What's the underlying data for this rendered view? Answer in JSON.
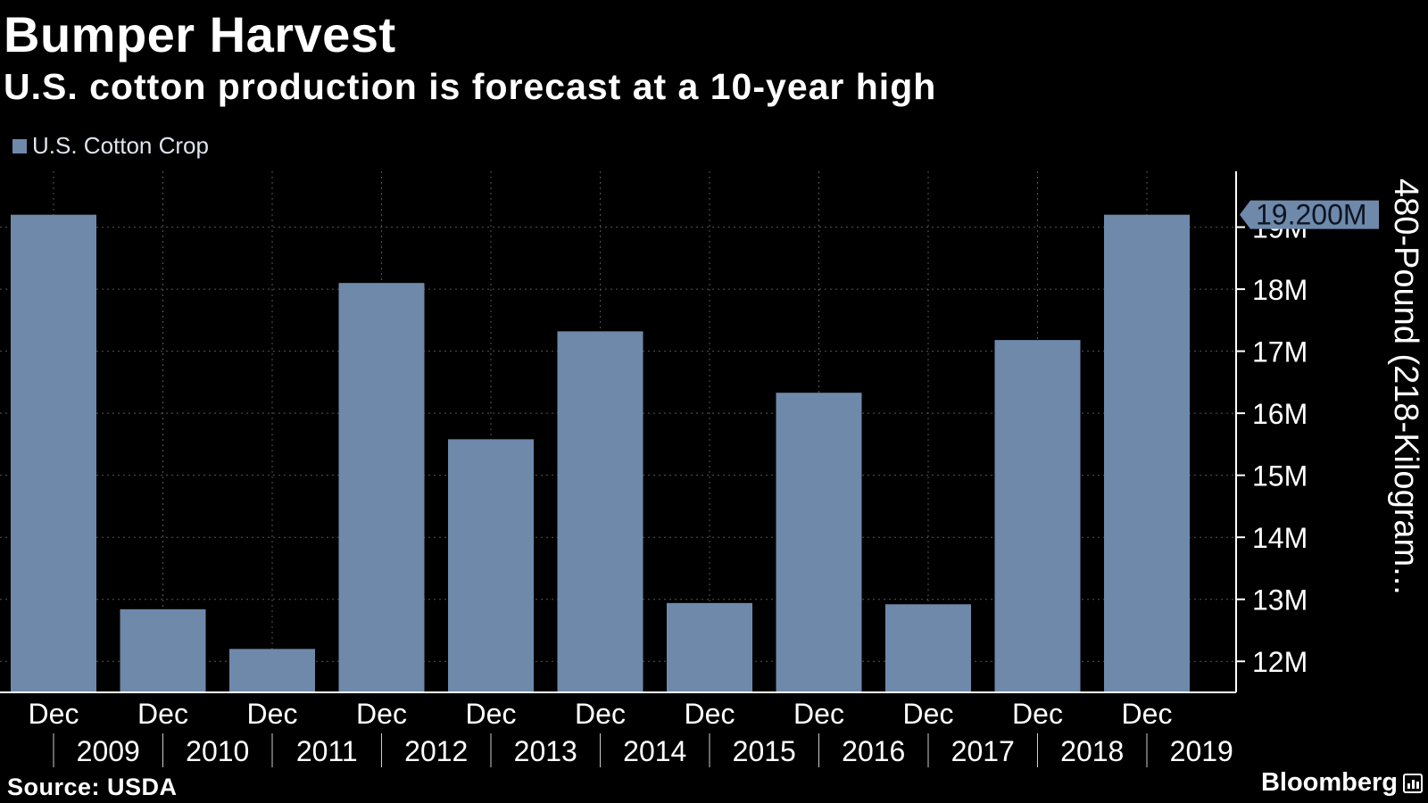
{
  "header": {
    "title": "Bumper Harvest",
    "subtitle": "U.S. cotton production is forecast at a 10-year high"
  },
  "footer": {
    "source": "Source: USDA",
    "brand": "Bloomberg"
  },
  "chart_data": {
    "type": "bar",
    "series": [
      {
        "name": "U.S. Cotton Crop",
        "color": "#6f89ab",
        "values": [
          19.2,
          12.84,
          12.2,
          18.1,
          15.58,
          17.32,
          12.94,
          16.33,
          12.92,
          17.18,
          19.2
        ]
      }
    ],
    "categories": [
      "Dec 2009",
      "Dec 2010",
      "Dec 2011",
      "Dec 2012",
      "Dec 2013",
      "Dec 2014",
      "Dec 2015",
      "Dec 2016",
      "Dec 2017",
      "Dec 2018",
      "Dec 2019"
    ],
    "x_month_labels": [
      "Dec",
      "Dec",
      "Dec",
      "Dec",
      "Dec",
      "Dec",
      "Dec",
      "Dec",
      "Dec",
      "Dec",
      "Dec"
    ],
    "x_year_labels": [
      "2009",
      "2010",
      "2011",
      "2012",
      "2013",
      "2014",
      "2015",
      "2016",
      "2017",
      "2018",
      "2019"
    ],
    "y_ticks": [
      12,
      13,
      14,
      15,
      16,
      17,
      18,
      19
    ],
    "y_tick_labels": [
      "12M",
      "13M",
      "14M",
      "15M",
      "16M",
      "17M",
      "18M",
      "19M"
    ],
    "ylim": [
      11.5,
      19.9
    ],
    "ylabel": "480-Pound (218-Kilogram...",
    "last_value_label": "19.200M",
    "y_axis_side": "right",
    "grid": true,
    "legend_position": "top-left",
    "colors": {
      "background": "#000000",
      "bar": "#6f89ab",
      "grid": "#555555",
      "text": "#ffffff"
    }
  }
}
